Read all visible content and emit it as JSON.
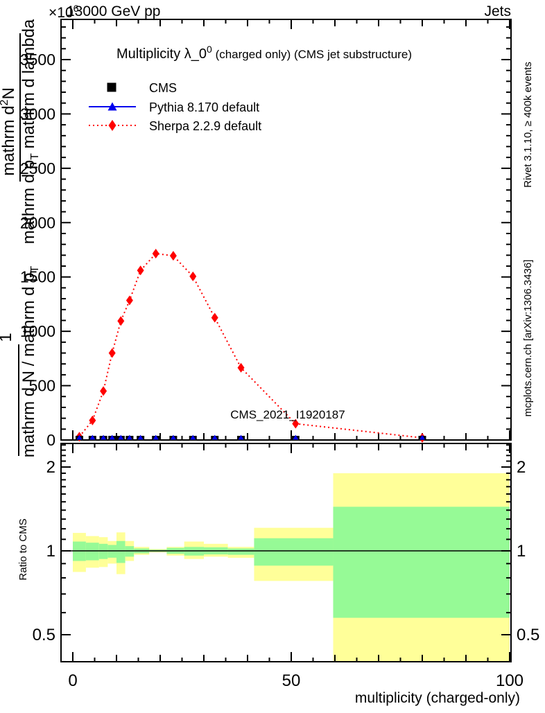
{
  "header": {
    "collision_energy": "13000 GeV pp",
    "analysis_group": "Jets",
    "y_scale_prefix": "×10",
    "y_scale_exponent": "6"
  },
  "titles": {
    "observable_main": "Multiplicity λ_0",
    "observable_sup": "0",
    "observable_suffix": " (charged only) (CMS jet substructure)",
    "watermark": "CMS_2021_I1920187",
    "x_axis": "multiplicity (charged-only)",
    "ratio_axis": "Ratio to CMS"
  },
  "side_notes": {
    "rivet": "Rivet 3.1.10, ≥ 400k events",
    "mcplots": "mcplots.cern.ch [arXiv:1306.3436]"
  },
  "y_axis_label": {
    "frac_upper_num_main": "mathrm d",
    "frac_upper_num_sup": "2",
    "frac_upper_num_tail": "N",
    "frac_upper_den_main": "mathrm d p",
    "frac_upper_den_sub": "T",
    "frac_upper_den_tail": " mathrm d lambda",
    "frac_lower_num": "1",
    "frac_lower_den_main": "mathrm d N / mathrm d p",
    "frac_lower_den_sub": "T"
  },
  "legend": {
    "items": [
      {
        "label": "CMS",
        "marker": "black-filled-square",
        "color": "#000000"
      },
      {
        "label": "Pythia 8.170 default",
        "marker": "blue-triangle-solid-line",
        "color": "#0000ee"
      },
      {
        "label": "Sherpa 2.2.9 default",
        "marker": "red-diamond-dotted-line",
        "color": "#ff0000"
      }
    ]
  },
  "chart_data": {
    "type": "line",
    "title": "Multiplicity λ_0^0 (charged only) (CMS jet substructure)",
    "xlabel": "multiplicity (charged-only)",
    "ylabel": "1/(mathrm d N / mathrm d p_T) · mathrm d^2 N/(mathrm d p_T mathrm d lambda)",
    "y_unit_scale": "×10^6",
    "xlim": [
      -2.7,
      100.4
    ],
    "ylim": [
      0,
      3870
    ],
    "x_major_ticks": [
      0,
      50,
      100
    ],
    "y_major_ticks": [
      0,
      500,
      1000,
      1500,
      2000,
      2500,
      3000,
      3500
    ],
    "bin_centers": [
      1.5,
      4.5,
      7,
      9,
      11,
      13,
      15.5,
      19,
      23,
      27.5,
      32.5,
      38.5,
      51,
      80
    ],
    "series": [
      {
        "name": "CMS",
        "style": "filled-square",
        "color": "#000000",
        "values": [
          0,
          0,
          0,
          0,
          0,
          0,
          0,
          0,
          0,
          0,
          0,
          0,
          0,
          0
        ]
      },
      {
        "name": "Pythia 8.170 default",
        "style": "filled-triangle-solid-line",
        "color": "#0000ee",
        "values": [
          0,
          0,
          0,
          0,
          0,
          0,
          0,
          0,
          0,
          0,
          0,
          0,
          0,
          0
        ]
      },
      {
        "name": "Sherpa 2.2.9 default",
        "style": "filled-diamond-dotted-line",
        "color": "#ff0000",
        "values": [
          30,
          180,
          450,
          800,
          1095,
          1285,
          1560,
          1715,
          1695,
          1505,
          1125,
          665,
          150,
          20
        ]
      }
    ],
    "ratio_panel": {
      "ylabel": "Ratio to CMS",
      "scale": "log",
      "ylim": [
        0.4,
        2.45
      ],
      "y_ticks": [
        0.5,
        1,
        2
      ],
      "reference_line": 1,
      "band_colors": {
        "yellow": "#ffff99",
        "green": "#96fa96"
      },
      "bands": [
        {
          "x": [
            0,
            3
          ],
          "yellow": [
            0.84,
            1.16
          ],
          "green": [
            0.92,
            1.08
          ]
        },
        {
          "x": [
            3,
            6
          ],
          "yellow": [
            0.87,
            1.13
          ],
          "green": [
            0.925,
            1.07
          ]
        },
        {
          "x": [
            6,
            8
          ],
          "yellow": [
            0.875,
            1.12
          ],
          "green": [
            0.935,
            1.06
          ]
        },
        {
          "x": [
            8,
            10
          ],
          "yellow": [
            0.9,
            1.085
          ],
          "green": [
            0.945,
            1.05
          ]
        },
        {
          "x": [
            10,
            12
          ],
          "yellow": [
            0.825,
            1.165
          ],
          "green": [
            0.905,
            1.085
          ]
        },
        {
          "x": [
            12,
            14
          ],
          "yellow": [
            0.92,
            1.085
          ],
          "green": [
            0.953,
            1.04
          ]
        },
        {
          "x": [
            14,
            17.5
          ],
          "yellow": [
            0.968,
            1.033
          ],
          "green": [
            0.98,
            1.02
          ]
        },
        {
          "x": [
            17.5,
            21.5
          ],
          "yellow": [
            0.987,
            1.015
          ],
          "green": [
            0.992,
            1.01
          ]
        },
        {
          "x": [
            21.5,
            25.5
          ],
          "yellow": [
            0.962,
            1.033
          ],
          "green": [
            0.976,
            1.025
          ]
        },
        {
          "x": [
            25.5,
            30
          ],
          "yellow": [
            0.935,
            1.08
          ],
          "green": [
            0.962,
            1.033
          ]
        },
        {
          "x": [
            30,
            35.5
          ],
          "yellow": [
            0.953,
            1.06
          ],
          "green": [
            0.971,
            1.03
          ]
        },
        {
          "x": [
            35.5,
            41.5
          ],
          "yellow": [
            0.944,
            1.033
          ],
          "green": [
            0.968,
            1.02
          ]
        },
        {
          "x": [
            41.5,
            59.6
          ],
          "yellow": [
            0.78,
            1.21
          ],
          "green": [
            0.885,
            1.11
          ]
        },
        {
          "x": [
            59.6,
            100
          ],
          "yellow": [
            0.38,
            1.9
          ],
          "green": [
            0.575,
            1.44
          ]
        }
      ]
    }
  }
}
